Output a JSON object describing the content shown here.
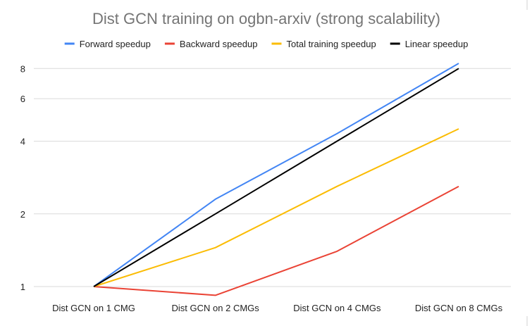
{
  "chart_data": {
    "type": "line",
    "title": "Dist GCN training on ogbn-arxiv (strong scalability)",
    "xlabel": "",
    "ylabel": "",
    "y_scale": "log2",
    "ylim": [
      1,
      8
    ],
    "yticks": [
      1,
      2,
      4,
      6,
      8
    ],
    "ytick_labels": [
      "1",
      "2",
      "4",
      "6",
      "8"
    ],
    "grid": true,
    "legend_position": "top",
    "categories": [
      "Dist GCN on 1 CMG",
      "Dist GCN on 2 CMGs",
      "Dist GCN on 4 CMGs",
      "Dist GCN on 8 CMGs"
    ],
    "series": [
      {
        "name": "Forward speedup",
        "color": "#4285f4",
        "values": [
          1.0,
          2.3,
          4.3,
          8.4
        ]
      },
      {
        "name": "Backward speedup",
        "color": "#ea4335",
        "values": [
          1.0,
          0.92,
          1.4,
          2.6
        ]
      },
      {
        "name": "Total training speedup",
        "color": "#fbbc04",
        "values": [
          1.0,
          1.45,
          2.6,
          4.5
        ]
      },
      {
        "name": "Linear speedup",
        "color": "#000000",
        "values": [
          1,
          2,
          4,
          8
        ]
      }
    ]
  }
}
